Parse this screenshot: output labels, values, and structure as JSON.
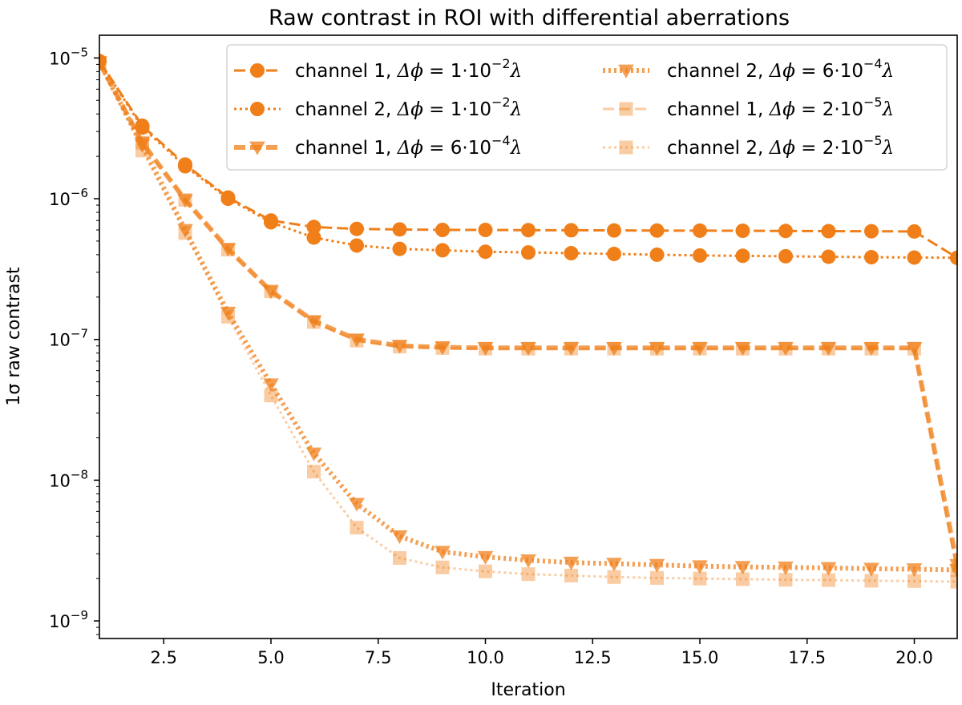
{
  "chart_data": {
    "type": "line",
    "title": "Raw contrast in ROI with differential aberrations",
    "xlabel": "Iteration",
    "ylabel": "1σ raw contrast",
    "yscale": "log",
    "xlim": [
      1,
      21
    ],
    "ylim": [
      7.5e-10,
      1.45e-05
    ],
    "x_ticks": [
      2.5,
      5.0,
      7.5,
      10.0,
      12.5,
      15.0,
      17.5,
      20.0
    ],
    "x_tick_labels": [
      "2.5",
      "5.0",
      "7.5",
      "10.0",
      "12.5",
      "15.0",
      "17.5",
      "20.0"
    ],
    "y_ticks": [
      1e-09,
      1e-08,
      1e-07,
      1e-06,
      1e-05
    ],
    "y_tick_exponents": [
      "−9",
      "−8",
      "−7",
      "−6",
      "−5"
    ],
    "y_tick_base": "10",
    "legend_position": "top-right",
    "series": [
      {
        "name": "channel 1, Δϕ = 1·10⁻²λ",
        "legend": {
          "pre": "channel 1, ",
          "symbol": "Δϕ",
          "coef": " = 1·10",
          "exp": "−2",
          "post": "λ"
        },
        "color": "#f07f1a",
        "marker": "circle",
        "linestyle": "dashed",
        "alpha": 1.0,
        "x": [
          1,
          2,
          3,
          4,
          5,
          6,
          7,
          8,
          9,
          10,
          11,
          12,
          13,
          14,
          15,
          16,
          17,
          18,
          19,
          20,
          21
        ],
        "values": [
          9.5e-06,
          3.3e-06,
          1.75e-06,
          1.02e-06,
          7e-07,
          6.3e-07,
          6.1e-07,
          6.05e-07,
          6e-07,
          6e-07,
          5.98e-07,
          5.97e-07,
          5.95e-07,
          5.94e-07,
          5.93e-07,
          5.92e-07,
          5.9e-07,
          5.88e-07,
          5.87e-07,
          5.85e-07,
          3.8e-07
        ]
      },
      {
        "name": "channel 2, Δϕ = 1·10⁻²λ",
        "legend": {
          "pre": "channel 2, ",
          "symbol": "Δϕ",
          "coef": " = 1·10",
          "exp": "−2",
          "post": "λ"
        },
        "color": "#f07f1a",
        "marker": "circle",
        "linestyle": "dotted",
        "alpha": 1.0,
        "x": [
          1,
          2,
          3,
          4,
          5,
          6,
          7,
          8,
          9,
          10,
          11,
          12,
          13,
          14,
          15,
          16,
          17,
          18,
          19,
          20,
          21
        ],
        "values": [
          9.5e-06,
          3.2e-06,
          1.7e-06,
          1e-06,
          6.8e-07,
          5.3e-07,
          4.65e-07,
          4.4e-07,
          4.3e-07,
          4.2e-07,
          4.15e-07,
          4.1e-07,
          4.05e-07,
          4e-07,
          3.95e-07,
          3.93e-07,
          3.9e-07,
          3.87e-07,
          3.84e-07,
          3.82e-07,
          3.8e-07
        ]
      },
      {
        "name": "channel 1, Δϕ = 6·10⁻⁴λ",
        "legend": {
          "pre": "channel 1, ",
          "symbol": "Δϕ",
          "coef": " = 6·10",
          "exp": "−4",
          "post": "λ"
        },
        "color": "#f07f1a",
        "marker": "triangle-down",
        "linestyle": "dashed",
        "alpha": 0.75,
        "x": [
          1,
          2,
          3,
          4,
          5,
          6,
          7,
          8,
          9,
          10,
          11,
          12,
          13,
          14,
          15,
          16,
          17,
          18,
          19,
          20,
          21
        ],
        "values": [
          9.3e-06,
          2.5e-06,
          9.8e-07,
          4.4e-07,
          2.2e-07,
          1.35e-07,
          1e-07,
          9e-08,
          8.8e-08,
          8.7e-08,
          8.7e-08,
          8.7e-08,
          8.7e-08,
          8.7e-08,
          8.7e-08,
          8.7e-08,
          8.7e-08,
          8.7e-08,
          8.7e-08,
          8.7e-08,
          2.5e-09
        ]
      },
      {
        "name": "channel 2, Δϕ = 6·10⁻⁴λ",
        "legend": {
          "pre": "channel 2, ",
          "symbol": "Δϕ",
          "coef": " = 6·10",
          "exp": "−4",
          "post": "λ"
        },
        "color": "#f07f1a",
        "marker": "triangle-down",
        "linestyle": "dotted",
        "alpha": 0.75,
        "x": [
          1,
          2,
          3,
          4,
          5,
          6,
          7,
          8,
          9,
          10,
          11,
          12,
          13,
          14,
          15,
          16,
          17,
          18,
          19,
          20,
          21
        ],
        "values": [
          9.3e-06,
          2.4e-06,
          6e-07,
          1.55e-07,
          4.8e-08,
          1.55e-08,
          6.8e-09,
          4e-09,
          3.1e-09,
          2.85e-09,
          2.7e-09,
          2.6e-09,
          2.55e-09,
          2.5e-09,
          2.45e-09,
          2.42e-09,
          2.4e-09,
          2.38e-09,
          2.35e-09,
          2.33e-09,
          2.3e-09
        ]
      },
      {
        "name": "channel 1, Δϕ = 2·10⁻⁵λ",
        "legend": {
          "pre": "channel 1, ",
          "symbol": "Δϕ",
          "coef": " = 2·10",
          "exp": "−5",
          "post": "λ"
        },
        "color": "#f07f1a",
        "marker": "square",
        "linestyle": "dashed",
        "alpha": 0.4,
        "x": [
          1,
          2,
          3,
          4,
          5,
          6,
          7,
          8,
          9,
          10,
          11,
          12,
          13,
          14,
          15,
          16,
          17,
          18,
          19,
          20,
          21
        ],
        "values": [
          9.2e-06,
          2.5e-06,
          9.8e-07,
          4.35e-07,
          2.2e-07,
          1.33e-07,
          9.8e-08,
          8.9e-08,
          8.7e-08,
          8.6e-08,
          8.6e-08,
          8.6e-08,
          8.6e-08,
          8.6e-08,
          8.6e-08,
          8.6e-08,
          8.6e-08,
          8.6e-08,
          8.6e-08,
          8.6e-08,
          2.3e-09
        ]
      },
      {
        "name": "channel 2, Δϕ = 2·10⁻⁵λ",
        "legend": {
          "pre": "channel 2, ",
          "symbol": "Δϕ",
          "coef": " = 2·10",
          "exp": "−5",
          "post": "λ"
        },
        "color": "#f07f1a",
        "marker": "square",
        "linestyle": "dotted",
        "alpha": 0.4,
        "x": [
          1,
          2,
          3,
          4,
          5,
          6,
          7,
          8,
          9,
          10,
          11,
          12,
          13,
          14,
          15,
          16,
          17,
          18,
          19,
          20,
          21
        ],
        "values": [
          9.2e-06,
          2.2e-06,
          5.7e-07,
          1.45e-07,
          4e-08,
          1.15e-08,
          4.6e-09,
          2.8e-09,
          2.4e-09,
          2.25e-09,
          2.15e-09,
          2.1e-09,
          2.05e-09,
          2.02e-09,
          2e-09,
          1.98e-09,
          1.96e-09,
          1.95e-09,
          1.93e-09,
          1.92e-09,
          1.9e-09
        ]
      }
    ]
  }
}
